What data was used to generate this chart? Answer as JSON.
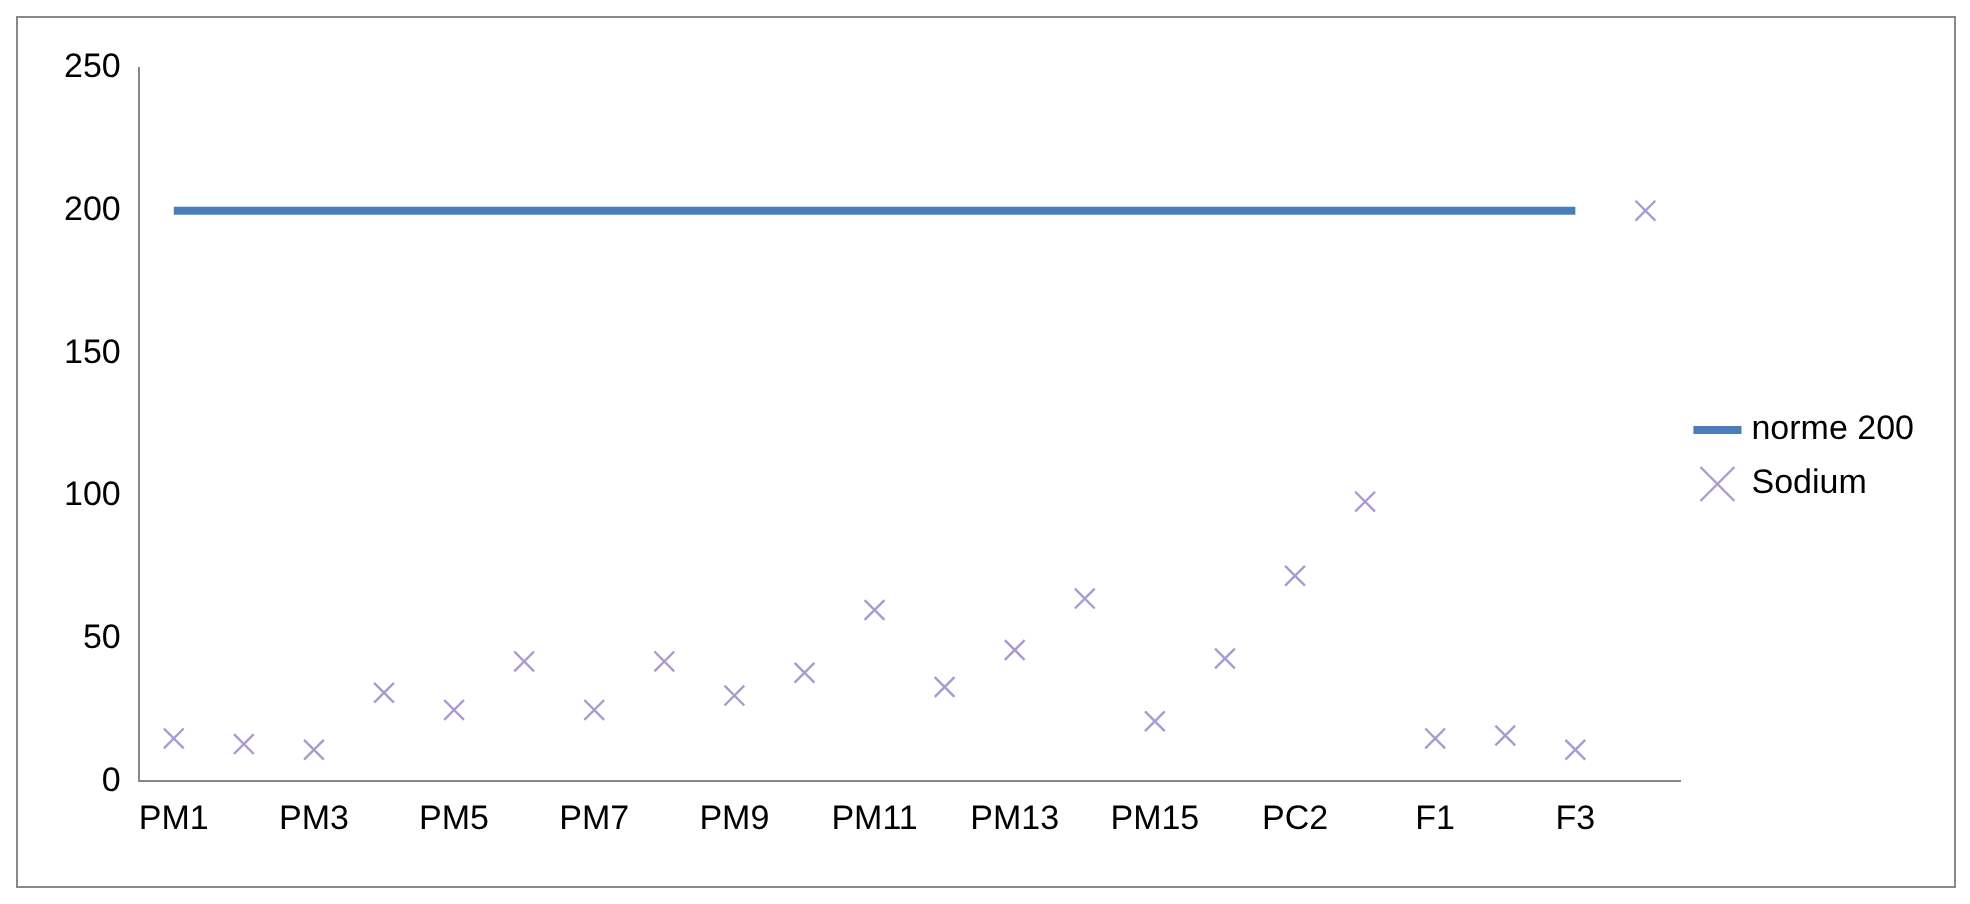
{
  "chart_data": {
    "type": "line",
    "categories": [
      "PM1",
      null,
      "PM3",
      null,
      "PM5",
      null,
      "PM7",
      null,
      "PM9",
      null,
      "PM11",
      null,
      "PM13",
      null,
      "PM15",
      null,
      "PC2",
      null,
      "F1",
      null,
      "F3",
      null
    ],
    "series": [
      {
        "name": "norme 200",
        "color": "#4a7ebb",
        "values": [
          200,
          200,
          200,
          200,
          200,
          200,
          200,
          200,
          200,
          200,
          200,
          200,
          200,
          200,
          200,
          200,
          200,
          200,
          200,
          200,
          200,
          null
        ],
        "marker": "none"
      },
      {
        "name": "Sodium",
        "type": "scatter",
        "color": "#a99bd0",
        "values": [
          15,
          13,
          11,
          31,
          25,
          42,
          25,
          42,
          30,
          38,
          60,
          33,
          46,
          64,
          21,
          43,
          72,
          98,
          15,
          16,
          11,
          200
        ],
        "marker": "cross"
      }
    ],
    "ylim": [
      0,
      250
    ],
    "yticks": [
      0,
      50,
      100,
      150,
      200,
      250
    ],
    "grid": false,
    "legend": "right"
  }
}
